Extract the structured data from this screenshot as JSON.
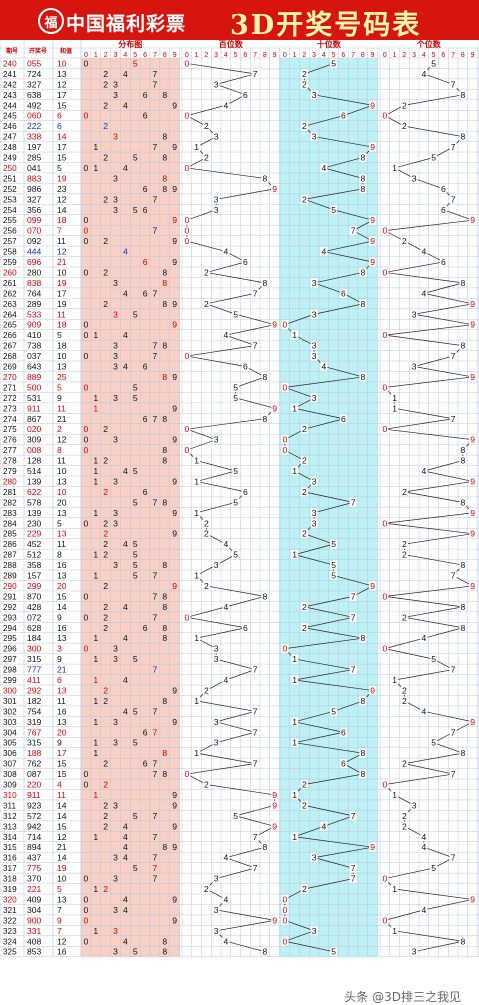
{
  "header": {
    "brand": "中国福利彩票",
    "title": "3D开奖号码表",
    "logo": "福彩logo"
  },
  "watermark": "头条 @3D排三之我见",
  "chart_data": {
    "type": "table",
    "headers": {
      "period": "期号",
      "number": "开奖号",
      "sum": "和值",
      "distribution": "分布图",
      "hundreds": "百位数",
      "tens": "十位数",
      "units": "个位数"
    },
    "digit_headers": [
      "0",
      "1",
      "2",
      "3",
      "4",
      "5",
      "6",
      "7",
      "8",
      "9"
    ],
    "rows": [
      [
        "240",
        "055",
        "10"
      ],
      [
        "241",
        "724",
        "13"
      ],
      [
        "242",
        "327",
        "12"
      ],
      [
        "243",
        "638",
        "17"
      ],
      [
        "244",
        "492",
        "15"
      ],
      [
        "245",
        "060",
        "6"
      ],
      [
        "246",
        "222",
        "6"
      ],
      [
        "247",
        "338",
        "14"
      ],
      [
        "248",
        "197",
        "17"
      ],
      [
        "249",
        "285",
        "15"
      ],
      [
        "250",
        "041",
        "5"
      ],
      [
        "251",
        "883",
        "19"
      ],
      [
        "252",
        "986",
        "23"
      ],
      [
        "253",
        "327",
        "12"
      ],
      [
        "254",
        "356",
        "14"
      ],
      [
        "255",
        "099",
        "18"
      ],
      [
        "256",
        "070",
        "7"
      ],
      [
        "257",
        "092",
        "11"
      ],
      [
        "258",
        "444",
        "12"
      ],
      [
        "259",
        "696",
        "21"
      ],
      [
        "260",
        "280",
        "10"
      ],
      [
        "261",
        "838",
        "19"
      ],
      [
        "262",
        "764",
        "17"
      ],
      [
        "263",
        "289",
        "19"
      ],
      [
        "264",
        "533",
        "11"
      ],
      [
        "265",
        "909",
        "18"
      ],
      [
        "266",
        "410",
        "5"
      ],
      [
        "267",
        "738",
        "18"
      ],
      [
        "268",
        "037",
        "10"
      ],
      [
        "269",
        "643",
        "13"
      ],
      [
        "270",
        "889",
        "25"
      ],
      [
        "271",
        "500",
        "5"
      ],
      [
        "272",
        "531",
        "9"
      ],
      [
        "273",
        "911",
        "11"
      ],
      [
        "274",
        "867",
        "21"
      ],
      [
        "275",
        "020",
        "2"
      ],
      [
        "276",
        "309",
        "12"
      ],
      [
        "277",
        "008",
        "8"
      ],
      [
        "278",
        "128",
        "11"
      ],
      [
        "279",
        "514",
        "10"
      ],
      [
        "280",
        "139",
        "13"
      ],
      [
        "281",
        "622",
        "10"
      ],
      [
        "282",
        "578",
        "20"
      ],
      [
        "283",
        "139",
        "13"
      ],
      [
        "284",
        "230",
        "5"
      ],
      [
        "285",
        "229",
        "13"
      ],
      [
        "286",
        "452",
        "11"
      ],
      [
        "287",
        "512",
        "8"
      ],
      [
        "288",
        "358",
        "16"
      ],
      [
        "289",
        "157",
        "13"
      ],
      [
        "290",
        "299",
        "20"
      ],
      [
        "291",
        "870",
        "15"
      ],
      [
        "292",
        "428",
        "14"
      ],
      [
        "293",
        "072",
        "9"
      ],
      [
        "294",
        "628",
        "16"
      ],
      [
        "295",
        "184",
        "13"
      ],
      [
        "296",
        "300",
        "3"
      ],
      [
        "297",
        "315",
        "9"
      ],
      [
        "298",
        "777",
        "21"
      ],
      [
        "299",
        "411",
        "6"
      ],
      [
        "300",
        "292",
        "13"
      ],
      [
        "301",
        "182",
        "11"
      ],
      [
        "302",
        "754",
        "16"
      ],
      [
        "303",
        "319",
        "13"
      ],
      [
        "304",
        "767",
        "20"
      ],
      [
        "305",
        "315",
        "9"
      ],
      [
        "306",
        "188",
        "17"
      ],
      [
        "307",
        "762",
        "15"
      ],
      [
        "308",
        "087",
        "15"
      ],
      [
        "309",
        "220",
        "4"
      ],
      [
        "310",
        "911",
        "11"
      ],
      [
        "311",
        "923",
        "14"
      ],
      [
        "312",
        "572",
        "14"
      ],
      [
        "313",
        "942",
        "15"
      ],
      [
        "314",
        "714",
        "12"
      ],
      [
        "315",
        "894",
        "21"
      ],
      [
        "316",
        "437",
        "14"
      ],
      [
        "317",
        "775",
        "19"
      ],
      [
        "318",
        "370",
        "10"
      ],
      [
        "319",
        "221",
        "5"
      ],
      [
        "320",
        "409",
        "13"
      ],
      [
        "321",
        "304",
        "7"
      ],
      [
        "322",
        "900",
        "9"
      ],
      [
        "323",
        "331",
        "7"
      ],
      [
        "324",
        "408",
        "12"
      ],
      [
        "325",
        "853",
        "16"
      ]
    ]
  },
  "colors": {
    "header_red": "#d7150f",
    "title_yellow": "#fff7b0",
    "grid": "#b7c6e4",
    "dist_bg": "#f8d0c4",
    "tens_bg": "#bdf1f4",
    "red_num": "#e00000",
    "blue_num": "#1a2fd0",
    "period_red": "#e00000"
  }
}
